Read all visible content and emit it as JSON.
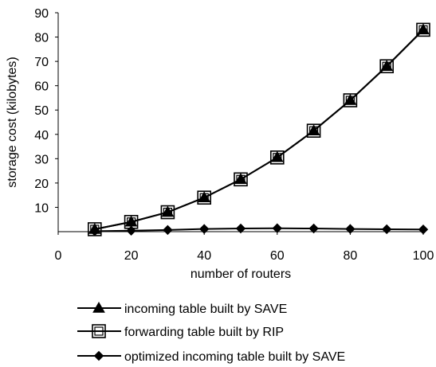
{
  "chart_data": {
    "type": "line",
    "title": "",
    "xlabel": "number of routers",
    "ylabel": "storage cost (kilobytes)",
    "xlim": [
      0,
      100
    ],
    "ylim": [
      0,
      90
    ],
    "xticks": [
      0,
      20,
      40,
      60,
      80,
      100
    ],
    "yticks": [
      10,
      20,
      30,
      40,
      50,
      60,
      70,
      80,
      90
    ],
    "x": [
      10,
      20,
      30,
      40,
      50,
      60,
      70,
      80,
      90,
      100
    ],
    "grid": false,
    "legend_position": "bottom",
    "series": [
      {
        "name": "incoming table built by SAVE",
        "marker": "triangle",
        "color": "#000000",
        "values": [
          1,
          4,
          8,
          14,
          21.5,
          30.5,
          41.5,
          54,
          68,
          83
        ]
      },
      {
        "name": "forwarding table built by RIP",
        "marker": "square-open",
        "color": "#000000",
        "values": [
          1,
          4,
          8,
          14,
          21.5,
          30.5,
          41.5,
          54,
          68,
          83
        ]
      },
      {
        "name": "optimized incoming table built by SAVE",
        "marker": "diamond",
        "color": "#000000",
        "values": [
          0.2,
          0.4,
          0.7,
          1.1,
          1.3,
          1.4,
          1.3,
          1.1,
          1.0,
          0.9
        ]
      }
    ]
  }
}
